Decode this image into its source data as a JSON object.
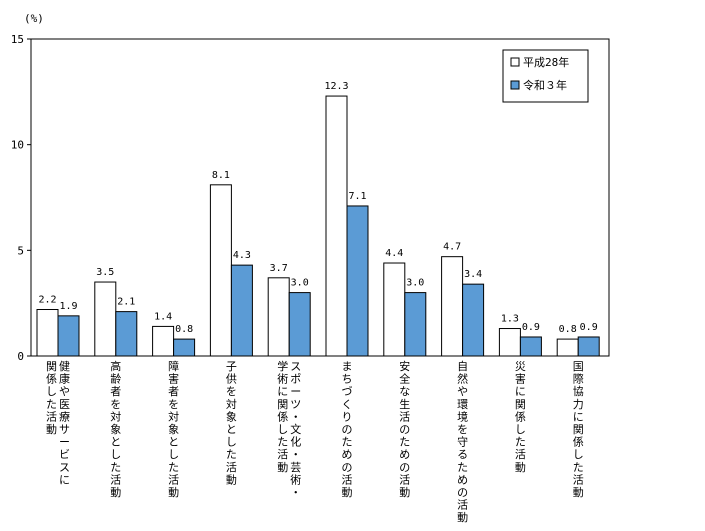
{
  "chart_data": {
    "type": "bar",
    "unit_label": "(%)",
    "categories": [
      [
        "健康や医療サービスに",
        "関係した活動"
      ],
      [
        "高齢者を対象とした活動"
      ],
      [
        "障害者を対象とした活動"
      ],
      [
        "子供を対象とした活動"
      ],
      [
        "スポーツ・文化・芸術・",
        "学術に関係した活動"
      ],
      [
        "まちづくりのための活動"
      ],
      [
        "安全な生活のための活動"
      ],
      [
        "自然や環境を守るための活動"
      ],
      [
        "災害に関係した活動"
      ],
      [
        "国際協力に関係した活動"
      ]
    ],
    "series": [
      {
        "name": "平成28年",
        "color": "#ffffff",
        "values": [
          2.2,
          3.5,
          1.4,
          8.1,
          3.7,
          12.3,
          4.4,
          4.7,
          1.3,
          0.8
        ],
        "labels": [
          "2.2",
          "3.5",
          "1.4",
          "8.1",
          "3.7",
          "12.3",
          "4.4",
          "4.7",
          "1.3",
          "0.8"
        ]
      },
      {
        "name": "令和３年",
        "color": "#5b9bd5",
        "values": [
          1.9,
          2.1,
          0.8,
          4.3,
          3.0,
          7.1,
          3.0,
          3.4,
          0.9,
          0.9
        ],
        "labels": [
          "1.9",
          "2.1",
          "0.8",
          "4.3",
          "3.0",
          "7.1",
          "3.0",
          "3.4",
          "0.9",
          "0.9"
        ]
      }
    ],
    "yticks": [
      0,
      5,
      10,
      15
    ],
    "ylim": [
      0,
      15
    ],
    "grid": false,
    "legend_position": "top-right"
  }
}
